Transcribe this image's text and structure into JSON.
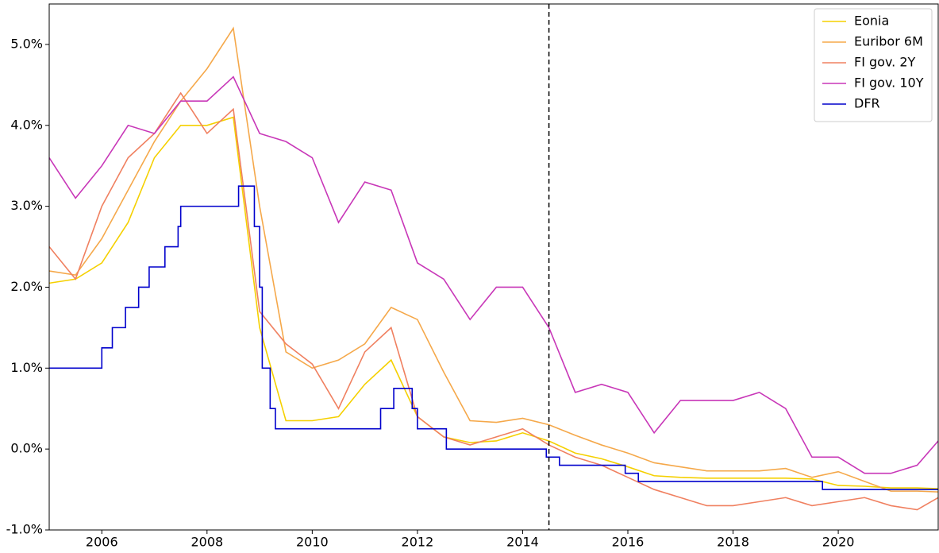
{
  "chart_data": {
    "type": "line",
    "x": [
      2005,
      2005.5,
      2006,
      2006.5,
      2007,
      2007.5,
      2008,
      2008.5,
      2009,
      2009.5,
      2010,
      2010.5,
      2011,
      2011.5,
      2012,
      2012.5,
      2013,
      2013.5,
      2014,
      2014.5,
      2015,
      2015.5,
      2016,
      2016.5,
      2017,
      2017.5,
      2018,
      2018.5,
      2019,
      2019.5,
      2020,
      2020.5,
      2021,
      2021.5,
      2021.9
    ],
    "series": [
      {
        "name": "Eonia",
        "color": "#f5d000",
        "values": [
          2.05,
          2.1,
          2.3,
          2.8,
          3.6,
          4.0,
          4.0,
          4.1,
          1.5,
          0.35,
          0.35,
          0.4,
          0.8,
          1.1,
          0.4,
          0.15,
          0.08,
          0.1,
          0.2,
          0.1,
          -0.05,
          -0.12,
          -0.22,
          -0.33,
          -0.35,
          -0.36,
          -0.36,
          -0.36,
          -0.36,
          -0.37,
          -0.45,
          -0.46,
          -0.48,
          -0.48,
          -0.49
        ]
      },
      {
        "name": "Euribor 6M",
        "color": "#f5a84a",
        "values": [
          2.2,
          2.15,
          2.6,
          3.2,
          3.8,
          4.3,
          4.7,
          5.2,
          3.0,
          1.2,
          1.0,
          1.1,
          1.3,
          1.75,
          1.6,
          0.95,
          0.35,
          0.33,
          0.38,
          0.3,
          0.17,
          0.05,
          -0.05,
          -0.17,
          -0.22,
          -0.27,
          -0.27,
          -0.27,
          -0.24,
          -0.35,
          -0.28,
          -0.4,
          -0.52,
          -0.52,
          -0.53
        ]
      },
      {
        "name": "FI gov. 2Y",
        "color": "#f08060",
        "values": [
          2.5,
          2.1,
          3.0,
          3.6,
          3.9,
          4.4,
          3.9,
          4.2,
          1.7,
          1.3,
          1.05,
          0.5,
          1.2,
          1.5,
          0.4,
          0.15,
          0.05,
          0.15,
          0.25,
          0.05,
          -0.1,
          -0.2,
          -0.35,
          -0.5,
          -0.6,
          -0.7,
          -0.7,
          -0.65,
          -0.6,
          -0.7,
          -0.65,
          -0.6,
          -0.7,
          -0.75,
          -0.6
        ]
      },
      {
        "name": "FI gov. 10Y",
        "color": "#c837b8",
        "values": [
          3.6,
          3.1,
          3.5,
          4.0,
          3.9,
          4.3,
          4.3,
          4.6,
          3.9,
          3.8,
          3.6,
          2.8,
          3.3,
          3.2,
          2.3,
          2.1,
          1.6,
          2.0,
          2.0,
          1.5,
          0.7,
          0.8,
          0.7,
          0.2,
          0.6,
          0.6,
          0.6,
          0.7,
          0.5,
          -0.1,
          -0.1,
          -0.3,
          -0.3,
          -0.2,
          0.1
        ]
      },
      {
        "name": "DFR",
        "color": "#0000cc",
        "step": true,
        "x": [
          2005,
          2006,
          2006.2,
          2006.45,
          2006.7,
          2006.9,
          2007.2,
          2007.45,
          2007.5,
          2008.6,
          2008.9,
          2009.0,
          2009.05,
          2009.2,
          2009.3,
          2011.3,
          2011.55,
          2011.9,
          2012.0,
          2012.55,
          2014.45,
          2014.7,
          2015.95,
          2016.2,
          2019.7,
          2021.9
        ],
        "values": [
          1.0,
          1.25,
          1.5,
          1.75,
          2.0,
          2.25,
          2.5,
          2.75,
          3.0,
          3.25,
          2.75,
          2.0,
          1.0,
          0.5,
          0.25,
          0.5,
          0.75,
          0.5,
          0.25,
          0.0,
          -0.1,
          -0.2,
          -0.3,
          -0.4,
          -0.5,
          -0.5
        ]
      }
    ],
    "vline": 2014.5,
    "xlim": [
      2005,
      2021.9
    ],
    "ylim": [
      -1,
      5.5
    ],
    "xticks": [
      2006,
      2008,
      2010,
      2012,
      2014,
      2016,
      2018,
      2020
    ],
    "yticks": [
      {
        "value": -1,
        "label": "-1.0%"
      },
      {
        "value": 0,
        "label": "0.0%"
      },
      {
        "value": 1,
        "label": "1.0%"
      },
      {
        "value": 2,
        "label": "2.0%"
      },
      {
        "value": 3,
        "label": "3.0%"
      },
      {
        "value": 4,
        "label": "4.0%"
      },
      {
        "value": 5,
        "label": "5.0%"
      }
    ],
    "legend": "upper right"
  }
}
